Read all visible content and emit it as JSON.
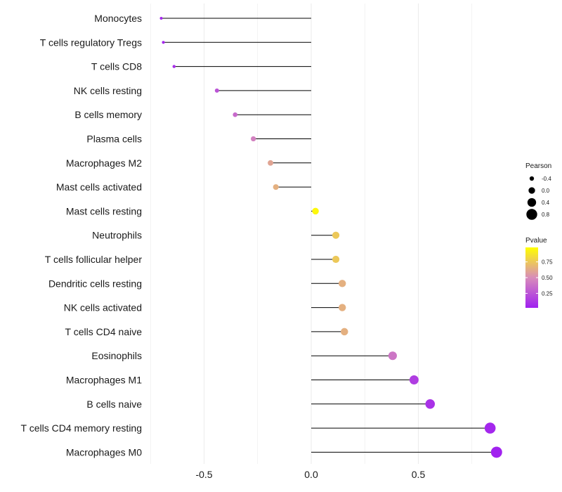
{
  "chart_data": {
    "type": "lollipop",
    "categories": [
      "Monocytes",
      "T cells regulatory  Tregs",
      "T cells CD8",
      "NK cells resting",
      "B cells memory",
      "Plasma cells",
      "Macrophages M2",
      "Mast cells activated",
      "Mast cells resting",
      "Neutrophils",
      "T cells follicular helper",
      "Dendritic cells resting",
      "NK cells activated",
      "T cells CD4 naive",
      "Eosinophils",
      "Macrophages M1",
      "B cells naive",
      "T cells CD4 memory resting",
      "Macrophages M0"
    ],
    "values": [
      -0.7,
      -0.69,
      -0.64,
      -0.44,
      -0.355,
      -0.27,
      -0.19,
      -0.165,
      0.02,
      0.115,
      0.115,
      0.145,
      0.145,
      0.155,
      0.38,
      0.48,
      0.555,
      0.835,
      0.865
    ],
    "pvalues": [
      0.05,
      0.05,
      0.08,
      0.25,
      0.35,
      0.45,
      0.6,
      0.65,
      0.95,
      0.75,
      0.75,
      0.65,
      0.65,
      0.65,
      0.4,
      0.15,
      0.1,
      0.05,
      0.03
    ],
    "x_ticks": [
      -0.5,
      0.0,
      0.5
    ],
    "x_tick_labels": [
      "-0.5",
      "0.0",
      "0.5"
    ],
    "xlim": [
      -0.78,
      0.9
    ],
    "size_legend": {
      "title": "Pearson",
      "labels": [
        "-0.4",
        "0.0",
        "0.4",
        "0.8"
      ],
      "values": [
        -0.4,
        0.0,
        0.4,
        0.8
      ]
    },
    "color_legend": {
      "title": "Pvalue",
      "labels": [
        "0.75",
        "0.50",
        "0.25"
      ],
      "values": [
        0.75,
        0.5,
        0.25
      ],
      "range": [
        0.02,
        0.98
      ]
    },
    "colors": {
      "low": "#a020f0",
      "mid": "#d88cba",
      "high": "#ffff00",
      "stem": "#000000",
      "grid": "#ebebeb"
    }
  }
}
